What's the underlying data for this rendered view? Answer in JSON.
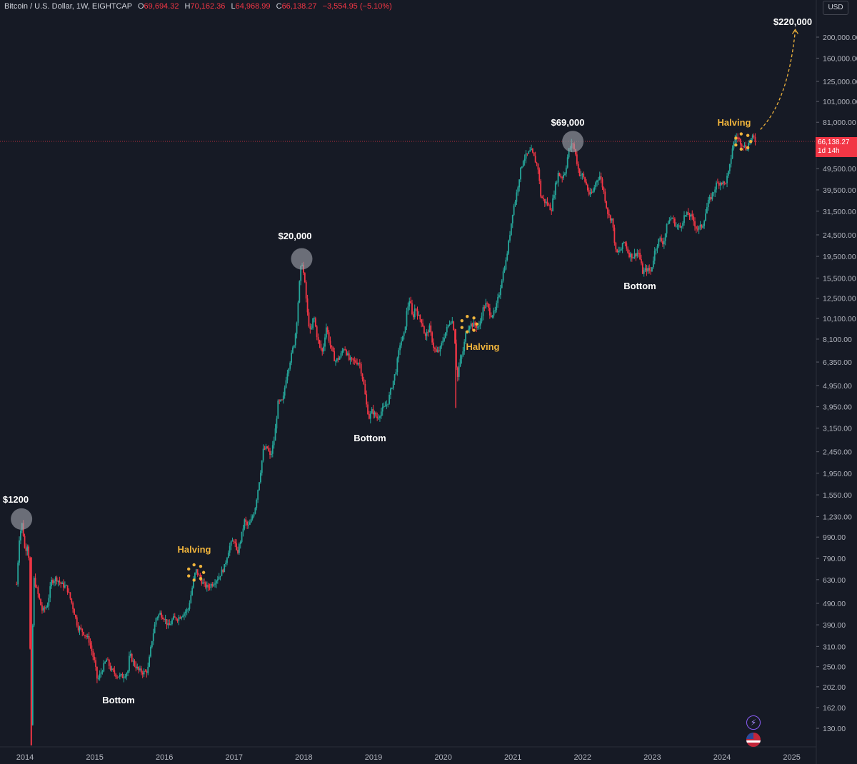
{
  "header": {
    "symbol": "Bitcoin / U.S. Dollar, 1W, EIGHTCAP",
    "open_label": "O",
    "open": "69,694.32",
    "high_label": "H",
    "high": "70,162.36",
    "low_label": "L",
    "low": "64,968.99",
    "close_label": "C",
    "close": "66,138.27",
    "change": "−3,554.95 (−5.10%)"
  },
  "currency_button": "USD",
  "price_tag": {
    "price": "66,138.27",
    "countdown": "1d 14h"
  },
  "colors": {
    "background": "#161a25",
    "up": "#26a69a",
    "down": "#f23645",
    "annotation": "#f0b43c",
    "marker": "#a0a3ab"
  },
  "icons": [
    "bolt-icon",
    "us-flag-icon"
  ],
  "chart_data": {
    "type": "candlestick",
    "title": "Bitcoin / U.S. Dollar, 1W, EIGHTCAP",
    "scale": "log",
    "ylim": [
      110,
      240000
    ],
    "xlim": [
      2013.85,
      2025.3
    ],
    "y_ticks": [
      "200,000.00",
      "160,000.00",
      "125,000.00",
      "101,000.00",
      "81,000.00",
      "49,500.00",
      "39,500.00",
      "31,500.00",
      "24,500.00",
      "19,500.00",
      "15,500.00",
      "12,500.00",
      "10,100.00",
      "8,100.00",
      "6,350.00",
      "4,950.00",
      "3,950.00",
      "3,150.00",
      "2,450.00",
      "1,950.00",
      "1,550.00",
      "1,230.00",
      "990.00",
      "790.00",
      "630.00",
      "490.00",
      "390.00",
      "310.00",
      "250.00",
      "202.00",
      "162.00",
      "130.00"
    ],
    "x_ticks": [
      "2014",
      "2015",
      "2016",
      "2017",
      "2018",
      "2019",
      "2020",
      "2021",
      "2022",
      "2023",
      "2024",
      "2025"
    ],
    "current_price": 66138.27,
    "price_path": [
      [
        2013.88,
        600
      ],
      [
        2013.92,
        1000
      ],
      [
        2013.96,
        1150
      ],
      [
        2014.0,
        850
      ],
      [
        2014.05,
        950
      ],
      [
        2014.09,
        120
      ],
      [
        2014.12,
        650
      ],
      [
        2014.18,
        550
      ],
      [
        2014.25,
        450
      ],
      [
        2014.32,
        480
      ],
      [
        2014.38,
        620
      ],
      [
        2014.45,
        640
      ],
      [
        2014.52,
        600
      ],
      [
        2014.6,
        580
      ],
      [
        2014.68,
        480
      ],
      [
        2014.76,
        380
      ],
      [
        2014.84,
        360
      ],
      [
        2014.92,
        330
      ],
      [
        2015.0,
        260
      ],
      [
        2015.04,
        215
      ],
      [
        2015.1,
        240
      ],
      [
        2015.17,
        270
      ],
      [
        2015.24,
        240
      ],
      [
        2015.32,
        228
      ],
      [
        2015.4,
        225
      ],
      [
        2015.48,
        240
      ],
      [
        2015.5,
        285
      ],
      [
        2015.56,
        260
      ],
      [
        2015.63,
        240
      ],
      [
        2015.7,
        235
      ],
      [
        2015.76,
        240
      ],
      [
        2015.82,
        330
      ],
      [
        2015.88,
        420
      ],
      [
        2015.94,
        440
      ],
      [
        2016.0,
        420
      ],
      [
        2016.06,
        380
      ],
      [
        2016.12,
        415
      ],
      [
        2016.2,
        420
      ],
      [
        2016.27,
        440
      ],
      [
        2016.34,
        460
      ],
      [
        2016.4,
        580
      ],
      [
        2016.45,
        700
      ],
      [
        2016.5,
        650
      ],
      [
        2016.56,
        600
      ],
      [
        2016.62,
        580
      ],
      [
        2016.7,
        610
      ],
      [
        2016.78,
        650
      ],
      [
        2016.86,
        720
      ],
      [
        2016.93,
        890
      ],
      [
        2017.0,
        970
      ],
      [
        2017.04,
        820
      ],
      [
        2017.1,
        980
      ],
      [
        2017.15,
        1180
      ],
      [
        2017.2,
        1100
      ],
      [
        2017.25,
        1190
      ],
      [
        2017.3,
        1350
      ],
      [
        2017.36,
        1800
      ],
      [
        2017.42,
        2500
      ],
      [
        2017.48,
        2550
      ],
      [
        2017.52,
        2300
      ],
      [
        2017.58,
        2850
      ],
      [
        2017.63,
        4100
      ],
      [
        2017.7,
        4200
      ],
      [
        2017.75,
        5500
      ],
      [
        2017.82,
        6800
      ],
      [
        2017.87,
        8000
      ],
      [
        2017.9,
        10000
      ],
      [
        2017.94,
        15000
      ],
      [
        2017.97,
        19000
      ],
      [
        2018.02,
        14000
      ],
      [
        2018.06,
        10000
      ],
      [
        2018.1,
        8500
      ],
      [
        2018.14,
        10500
      ],
      [
        2018.2,
        8000
      ],
      [
        2018.27,
        7000
      ],
      [
        2018.32,
        9300
      ],
      [
        2018.38,
        7600
      ],
      [
        2018.45,
        6400
      ],
      [
        2018.52,
        6700
      ],
      [
        2018.58,
        7500
      ],
      [
        2018.65,
        6500
      ],
      [
        2018.72,
        6400
      ],
      [
        2018.8,
        6300
      ],
      [
        2018.86,
        5000
      ],
      [
        2018.9,
        4000
      ],
      [
        2018.94,
        3500
      ],
      [
        2018.98,
        3800
      ],
      [
        2019.05,
        3500
      ],
      [
        2019.12,
        3800
      ],
      [
        2019.2,
        4100
      ],
      [
        2019.27,
        5000
      ],
      [
        2019.32,
        5800
      ],
      [
        2019.38,
        7700
      ],
      [
        2019.44,
        8500
      ],
      [
        2019.48,
        11000
      ],
      [
        2019.52,
        12500
      ],
      [
        2019.56,
        10000
      ],
      [
        2019.6,
        11500
      ],
      [
        2019.65,
        10200
      ],
      [
        2019.7,
        9700
      ],
      [
        2019.74,
        8200
      ],
      [
        2019.8,
        9200
      ],
      [
        2019.86,
        7500
      ],
      [
        2019.9,
        7000
      ],
      [
        2019.95,
        7200
      ],
      [
        2020.02,
        8500
      ],
      [
        2020.08,
        9500
      ],
      [
        2020.12,
        10100
      ],
      [
        2020.16,
        8800
      ],
      [
        2020.2,
        5200
      ],
      [
        2020.23,
        6200
      ],
      [
        2020.28,
        7000
      ],
      [
        2020.33,
        8800
      ],
      [
        2020.38,
        9500
      ],
      [
        2020.45,
        9400
      ],
      [
        2020.52,
        9200
      ],
      [
        2020.56,
        11000
      ],
      [
        2020.62,
        11800
      ],
      [
        2020.68,
        10500
      ],
      [
        2020.74,
        10700
      ],
      [
        2020.8,
        13000
      ],
      [
        2020.85,
        16000
      ],
      [
        2020.9,
        18500
      ],
      [
        2020.95,
        24000
      ],
      [
        2021.0,
        32000
      ],
      [
        2021.04,
        36000
      ],
      [
        2021.1,
        47000
      ],
      [
        2021.15,
        55000
      ],
      [
        2021.2,
        57000
      ],
      [
        2021.26,
        60000
      ],
      [
        2021.3,
        56000
      ],
      [
        2021.36,
        50000
      ],
      [
        2021.4,
        37000
      ],
      [
        2021.45,
        35000
      ],
      [
        2021.5,
        34000
      ],
      [
        2021.55,
        32000
      ],
      [
        2021.6,
        40000
      ],
      [
        2021.65,
        47000
      ],
      [
        2021.7,
        45000
      ],
      [
        2021.75,
        48000
      ],
      [
        2021.8,
        60000
      ],
      [
        2021.86,
        65000
      ],
      [
        2021.9,
        57000
      ],
      [
        2021.95,
        47000
      ],
      [
        2022.0,
        46000
      ],
      [
        2022.05,
        42000
      ],
      [
        2022.1,
        37000
      ],
      [
        2022.15,
        39000
      ],
      [
        2022.2,
        44000
      ],
      [
        2022.25,
        46000
      ],
      [
        2022.3,
        39000
      ],
      [
        2022.37,
        30000
      ],
      [
        2022.42,
        29000
      ],
      [
        2022.48,
        20000
      ],
      [
        2022.55,
        21000
      ],
      [
        2022.6,
        23000
      ],
      [
        2022.66,
        20000
      ],
      [
        2022.72,
        19500
      ],
      [
        2022.8,
        20500
      ],
      [
        2022.86,
        16500
      ],
      [
        2022.92,
        17000
      ],
      [
        2022.98,
        16600
      ],
      [
        2023.04,
        21000
      ],
      [
        2023.1,
        23500
      ],
      [
        2023.16,
        22500
      ],
      [
        2023.22,
        28000
      ],
      [
        2023.28,
        29500
      ],
      [
        2023.34,
        27000
      ],
      [
        2023.4,
        26500
      ],
      [
        2023.46,
        30000
      ],
      [
        2023.52,
        30500
      ],
      [
        2023.58,
        29000
      ],
      [
        2023.64,
        26000
      ],
      [
        2023.72,
        27000
      ],
      [
        2023.8,
        34500
      ],
      [
        2023.86,
        37500
      ],
      [
        2023.92,
        42000
      ],
      [
        2023.98,
        43000
      ],
      [
        2024.04,
        42000
      ],
      [
        2024.1,
        48000
      ],
      [
        2024.15,
        62000
      ],
      [
        2024.2,
        70000
      ],
      [
        2024.26,
        66000
      ],
      [
        2024.3,
        64000
      ],
      [
        2024.35,
        61000
      ],
      [
        2024.4,
        67000
      ],
      [
        2024.45,
        69000
      ],
      [
        2024.48,
        66138
      ]
    ],
    "markers": [
      {
        "x": 2013.95,
        "y": 1200,
        "label": "$1200"
      },
      {
        "x": 2017.97,
        "y": 19000,
        "label": "$20,000"
      },
      {
        "x": 2021.86,
        "y": 66000,
        "label": "$69,000"
      }
    ],
    "halvings": [
      {
        "x": 2016.45,
        "y": 680,
        "label": "Halving"
      },
      {
        "x": 2020.37,
        "y": 9500,
        "label": "Halving"
      },
      {
        "x": 2024.3,
        "y": 66000,
        "label": "Halving"
      }
    ],
    "bottoms": [
      {
        "x": 2015.32,
        "label": "Bottom"
      },
      {
        "x": 2018.96,
        "label": "Bottom"
      },
      {
        "x": 2022.84,
        "label": "Bottom"
      }
    ],
    "target": {
      "x": 2025.05,
      "y": 220000,
      "label": "$220,000"
    }
  }
}
